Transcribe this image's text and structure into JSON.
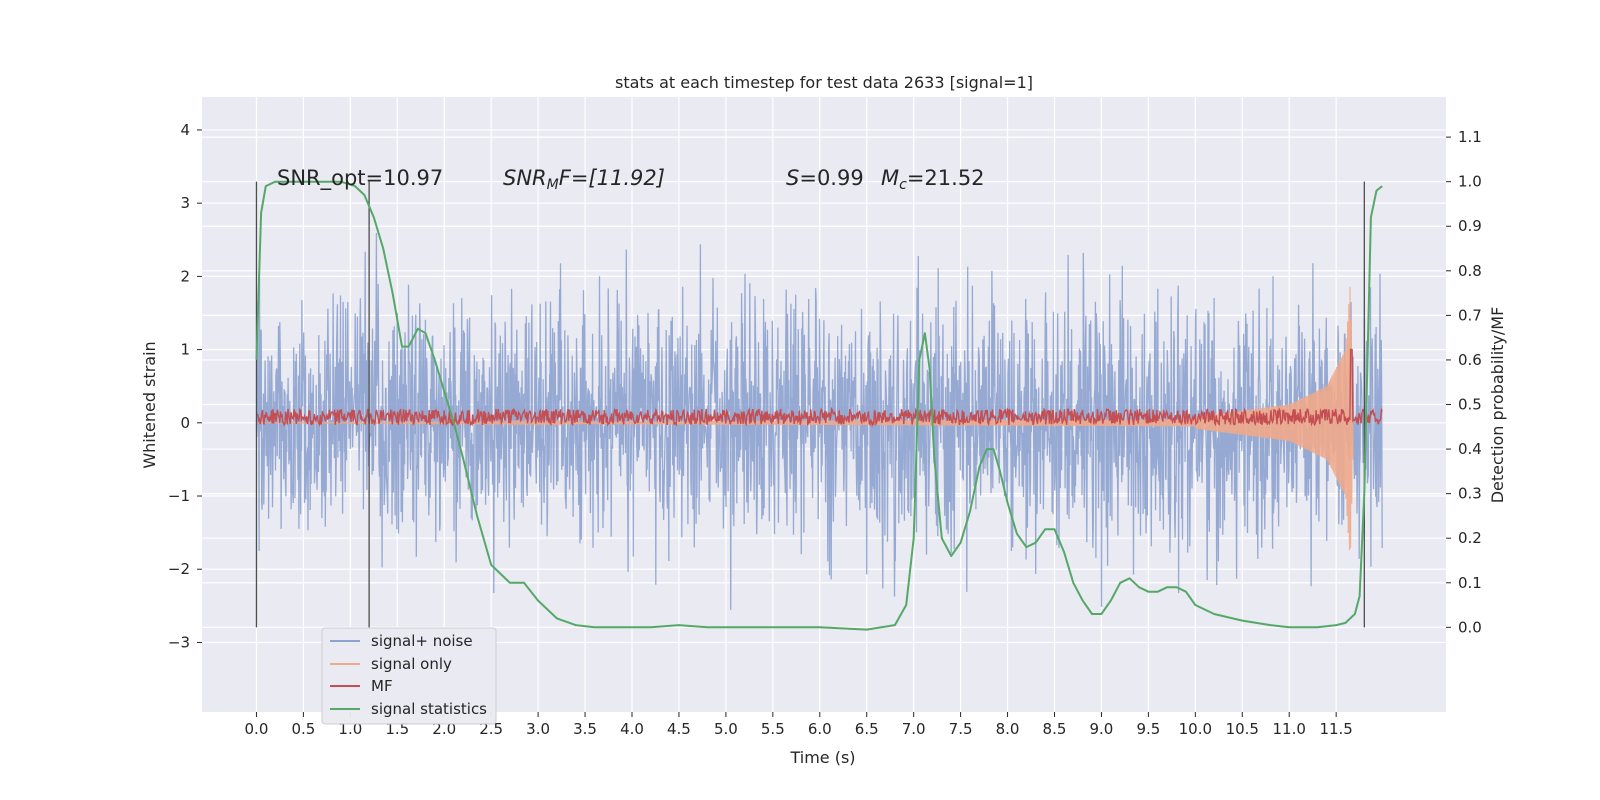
{
  "chart_data": {
    "type": "line",
    "title": "stats at each timestep for test data 2633 [signal=1]",
    "xlabel": "Time (s)",
    "ylabel": "Whitened strain",
    "y2label": "Detection probability/MF",
    "xlim": [
      -0.58,
      12.67
    ],
    "ylim": [
      -3.95,
      4.45
    ],
    "y2lim": [
      -0.19,
      1.19
    ],
    "xticks": [
      "0.0",
      "0.5",
      "1.0",
      "1.5",
      "2.0",
      "2.5",
      "3.0",
      "3.5",
      "4.0",
      "4.5",
      "5.0",
      "5.5",
      "6.0",
      "6.5",
      "7.0",
      "7.5",
      "8.0",
      "8.5",
      "9.0",
      "9.5",
      "10.0",
      "10.5",
      "11.0",
      "11.5"
    ],
    "yticks": [
      "4",
      "3",
      "2",
      "1",
      "0",
      "−1",
      "−2",
      "−3"
    ],
    "y2ticks": [
      "1.1",
      "1.0",
      "0.9",
      "0.8",
      "0.7",
      "0.6",
      "0.5",
      "0.4",
      "0.3",
      "0.2",
      "0.1",
      "0.0"
    ],
    "grid": true,
    "legend": {
      "position": "bottom-left",
      "entries": [
        {
          "label": "signal+ noise",
          "color": "#8da2cf"
        },
        {
          "label": "signal only",
          "color": "#f0a98a"
        },
        {
          "label": "MF",
          "color": "#c44e52"
        },
        {
          "label": "signal statistics",
          "color": "#55a868"
        }
      ]
    },
    "annotations": {
      "snr_opt": "SNR_opt=10.97",
      "snr_mf_var": "SNR",
      "snr_mf_sub": "M",
      "snr_mf_rest": "F=[11.92]",
      "s_var": "S",
      "s_rest": "=0.99",
      "mc_var": "M",
      "mc_sub": "c",
      "mc_rest": "=21.52"
    },
    "vertical_markers_x": [
      0.0,
      1.2,
      11.8
    ],
    "series": [
      {
        "name": "signal+ noise",
        "color": "#8da2cf",
        "description_band": [
          -2.6,
          3.3
        ],
        "x_range": [
          0.0,
          11.99
        ]
      },
      {
        "name": "signal only",
        "color": "#f0a98a",
        "envelope": [
          [
            10.0,
            0.08
          ],
          [
            11.0,
            0.25
          ],
          [
            11.4,
            0.5
          ],
          [
            11.6,
            1.0
          ],
          [
            11.65,
            1.9
          ],
          [
            11.68,
            0.5
          ]
        ]
      },
      {
        "name": "MF",
        "color": "#c44e52",
        "level": 0.08,
        "spike": [
          11.66,
          1.0
        ]
      },
      {
        "name": "signal statistics",
        "color": "#55a868",
        "x": [
          0.0,
          0.05,
          0.1,
          0.2,
          0.35,
          0.5,
          0.7,
          0.9,
          1.05,
          1.15,
          1.25,
          1.35,
          1.45,
          1.55,
          1.62,
          1.72,
          1.8,
          1.9,
          2.0,
          2.1,
          2.2,
          2.35,
          2.5,
          2.7,
          2.85,
          3.0,
          3.2,
          3.4,
          3.6,
          3.9,
          4.2,
          4.5,
          4.8,
          5.1,
          5.5,
          6.0,
          6.5,
          6.8,
          6.92,
          7.0,
          7.06,
          7.12,
          7.17,
          7.22,
          7.3,
          7.4,
          7.5,
          7.6,
          7.7,
          7.78,
          7.85,
          7.92,
          8.0,
          8.1,
          8.2,
          8.3,
          8.4,
          8.5,
          8.6,
          8.7,
          8.8,
          8.9,
          9.0,
          9.1,
          9.2,
          9.3,
          9.4,
          9.5,
          9.6,
          9.7,
          9.8,
          9.9,
          10.0,
          10.2,
          10.5,
          10.8,
          11.0,
          11.3,
          11.5,
          11.6,
          11.65,
          11.7,
          11.75,
          11.8,
          11.87,
          11.93,
          11.99
        ],
        "values": [
          0.6,
          0.93,
          0.99,
          1.0,
          1.0,
          1.0,
          1.0,
          1.0,
          0.99,
          0.97,
          0.92,
          0.85,
          0.75,
          0.63,
          0.63,
          0.67,
          0.66,
          0.6,
          0.53,
          0.46,
          0.38,
          0.25,
          0.14,
          0.1,
          0.1,
          0.06,
          0.02,
          0.005,
          0.0,
          0.0,
          0.0,
          0.005,
          0.0,
          0.0,
          0.0,
          0.0,
          -0.005,
          0.005,
          0.05,
          0.2,
          0.6,
          0.66,
          0.58,
          0.38,
          0.2,
          0.16,
          0.19,
          0.26,
          0.36,
          0.4,
          0.4,
          0.35,
          0.28,
          0.21,
          0.18,
          0.19,
          0.22,
          0.22,
          0.17,
          0.1,
          0.06,
          0.03,
          0.03,
          0.06,
          0.1,
          0.11,
          0.09,
          0.08,
          0.08,
          0.09,
          0.09,
          0.08,
          0.05,
          0.03,
          0.015,
          0.005,
          0.0,
          0.0,
          0.005,
          0.01,
          0.02,
          0.03,
          0.07,
          0.3,
          0.92,
          0.98,
          0.99
        ]
      }
    ]
  }
}
